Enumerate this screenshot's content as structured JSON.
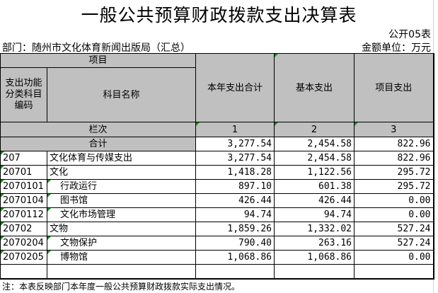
{
  "title": "一般公共预算财政拨款支出决算表",
  "form_no": "公开05表",
  "department": "部门：随州市文化体育新闻出版局（汇总）",
  "unit": "金额单位：万元",
  "header": {
    "item": "项目",
    "code": "支出功能分类科目编码",
    "name": "科目名称",
    "total": "本年支出合计",
    "basic": "基本支出",
    "project": "项目支出",
    "col_index_label": "栏次",
    "col_1": "1",
    "col_2": "2",
    "col_3": "3"
  },
  "sum_row": {
    "label": "合计",
    "total": "3,277.54",
    "basic": "2,454.58",
    "project": "822.96"
  },
  "rows": [
    {
      "code": "207",
      "name": "文化体育与传媒支出",
      "total": "3,277.54",
      "basic": "2,454.58",
      "project": "822.96"
    },
    {
      "code": "20701",
      "name": "文化",
      "total": "1,418.28",
      "basic": "1,122.56",
      "project": "295.72"
    },
    {
      "code": "2070101",
      "name": "行政运行",
      "total": "897.10",
      "basic": "601.38",
      "project": "295.72"
    },
    {
      "code": "2070104",
      "name": "图书馆",
      "total": "426.44",
      "basic": "426.44",
      "project": "0.00"
    },
    {
      "code": "2070112",
      "name": "文化市场管理",
      "total": "94.74",
      "basic": "94.74",
      "project": "0.00"
    },
    {
      "code": "20702",
      "name": "文物",
      "total": "1,859.26",
      "basic": "1,332.02",
      "project": "527.24"
    },
    {
      "code": "2070204",
      "name": "文物保护",
      "total": "790.40",
      "basic": "263.16",
      "project": "527.24"
    },
    {
      "code": "2070205",
      "name": "博物馆",
      "total": "1,068.86",
      "basic": "1,068.86",
      "project": "0.00"
    }
  ],
  "note": "注：本表反映部门本年度一般公共预算财政拨款实际支出情况。"
}
